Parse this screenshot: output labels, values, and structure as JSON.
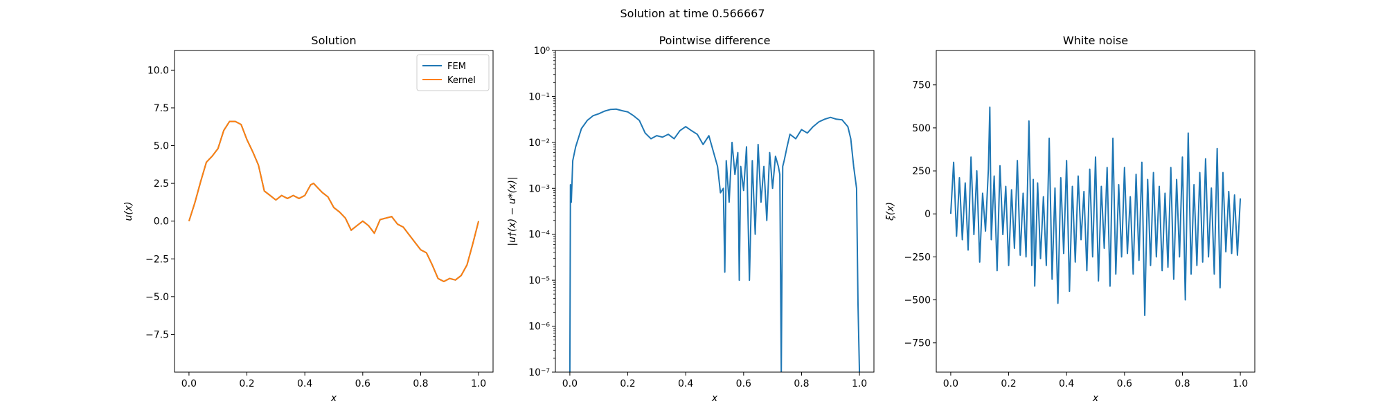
{
  "figure": {
    "suptitle": "Solution at time 0.566667"
  },
  "chart_data": [
    {
      "type": "line",
      "title": "Solution",
      "xlabel": "x",
      "ylabel": "u(x)",
      "xlim": [
        -0.05,
        1.05
      ],
      "ylim": [
        -10,
        11.3
      ],
      "xticks": [
        0.0,
        0.2,
        0.4,
        0.6,
        0.8,
        1.0
      ],
      "xtick_labels": [
        "0.0",
        "0.2",
        "0.4",
        "0.6",
        "0.8",
        "1.0"
      ],
      "yticks": [
        -7.5,
        -5.0,
        -2.5,
        0.0,
        2.5,
        5.0,
        7.5,
        10.0
      ],
      "ytick_labels": [
        "−7.5",
        "−5.0",
        "−2.5",
        "0.0",
        "2.5",
        "5.0",
        "7.5",
        "10.0"
      ],
      "legend": "top-right",
      "grid": false,
      "series": [
        {
          "name": "FEM",
          "color": "#1f77b4",
          "x": [
            0,
            0.02,
            0.04,
            0.06,
            0.08,
            0.1,
            0.12,
            0.14,
            0.16,
            0.18,
            0.2,
            0.22,
            0.24,
            0.26,
            0.28,
            0.3,
            0.32,
            0.34,
            0.36,
            0.38,
            0.4,
            0.42,
            0.43,
            0.44,
            0.46,
            0.48,
            0.5,
            0.52,
            0.54,
            0.56,
            0.58,
            0.6,
            0.62,
            0.64,
            0.66,
            0.68,
            0.7,
            0.72,
            0.74,
            0.76,
            0.78,
            0.8,
            0.82,
            0.84,
            0.86,
            0.88,
            0.9,
            0.92,
            0.94,
            0.96,
            0.98,
            1.0
          ],
          "y": [
            0,
            1.2,
            2.6,
            3.9,
            4.3,
            4.8,
            6.0,
            6.6,
            6.6,
            6.4,
            5.4,
            4.6,
            3.7,
            2.0,
            1.7,
            1.4,
            1.7,
            1.5,
            1.7,
            1.5,
            1.7,
            2.4,
            2.5,
            2.3,
            1.9,
            1.6,
            0.9,
            0.6,
            0.2,
            -0.6,
            -0.3,
            0.0,
            -0.3,
            -0.8,
            0.1,
            0.2,
            0.3,
            -0.2,
            -0.4,
            -0.9,
            -1.4,
            -1.9,
            -2.1,
            -2.9,
            -3.8,
            -4.0,
            -3.8,
            -3.9,
            -3.6,
            -2.9,
            -1.5,
            0.0
          ]
        },
        {
          "name": "Kernel",
          "color": "#ff7f0e",
          "x": [
            0,
            0.02,
            0.04,
            0.06,
            0.08,
            0.1,
            0.12,
            0.14,
            0.16,
            0.18,
            0.2,
            0.22,
            0.24,
            0.26,
            0.28,
            0.3,
            0.32,
            0.34,
            0.36,
            0.38,
            0.4,
            0.42,
            0.43,
            0.44,
            0.46,
            0.48,
            0.5,
            0.52,
            0.54,
            0.56,
            0.58,
            0.6,
            0.62,
            0.64,
            0.66,
            0.68,
            0.7,
            0.72,
            0.74,
            0.76,
            0.78,
            0.8,
            0.82,
            0.84,
            0.86,
            0.88,
            0.9,
            0.92,
            0.94,
            0.96,
            0.98,
            1.0
          ],
          "y": [
            0,
            1.2,
            2.6,
            3.9,
            4.3,
            4.8,
            6.0,
            6.6,
            6.6,
            6.4,
            5.4,
            4.6,
            3.7,
            2.0,
            1.7,
            1.4,
            1.7,
            1.5,
            1.7,
            1.5,
            1.7,
            2.4,
            2.5,
            2.3,
            1.9,
            1.6,
            0.9,
            0.6,
            0.2,
            -0.6,
            -0.3,
            0.0,
            -0.3,
            -0.8,
            0.1,
            0.2,
            0.3,
            -0.2,
            -0.4,
            -0.9,
            -1.4,
            -1.9,
            -2.1,
            -2.9,
            -3.8,
            -4.0,
            -3.8,
            -3.9,
            -3.6,
            -2.9,
            -1.5,
            0.0
          ]
        }
      ]
    },
    {
      "type": "line",
      "title": "Pointwise difference",
      "xlabel": "x",
      "ylabel": "|u†(x) − u*(x)|",
      "yscale": "log",
      "xlim": [
        -0.05,
        1.05
      ],
      "ylim": [
        1e-07,
        1
      ],
      "xticks": [
        0.0,
        0.2,
        0.4,
        0.6,
        0.8,
        1.0
      ],
      "xtick_labels": [
        "0.0",
        "0.2",
        "0.4",
        "0.6",
        "0.8",
        "1.0"
      ],
      "yticks": [
        1e-07,
        1e-06,
        1e-05,
        0.0001,
        0.001,
        0.01,
        0.1,
        1
      ],
      "ytick_labels": [
        "10⁻⁷",
        "10⁻⁶",
        "10⁻⁵",
        "10⁻⁴",
        "10⁻³",
        "10⁻²",
        "10⁻¹",
        "10⁰"
      ],
      "grid": false,
      "series": [
        {
          "color": "#1f77b4",
          "x": [
            0.0,
            0.002,
            0.005,
            0.01,
            0.02,
            0.04,
            0.06,
            0.08,
            0.1,
            0.12,
            0.14,
            0.16,
            0.18,
            0.2,
            0.22,
            0.24,
            0.26,
            0.28,
            0.3,
            0.32,
            0.34,
            0.36,
            0.38,
            0.4,
            0.42,
            0.44,
            0.46,
            0.48,
            0.5,
            0.51,
            0.52,
            0.53,
            0.535,
            0.54,
            0.55,
            0.56,
            0.57,
            0.58,
            0.585,
            0.59,
            0.6,
            0.61,
            0.62,
            0.63,
            0.64,
            0.65,
            0.66,
            0.67,
            0.68,
            0.69,
            0.7,
            0.71,
            0.72,
            0.725,
            0.73,
            0.735,
            0.74,
            0.75,
            0.76,
            0.78,
            0.8,
            0.82,
            0.84,
            0.86,
            0.88,
            0.9,
            0.92,
            0.94,
            0.96,
            0.97,
            0.98,
            0.99,
            0.995,
            1.0
          ],
          "y": [
            1e-07,
            0.0012,
            0.0005,
            0.004,
            0.008,
            0.02,
            0.03,
            0.038,
            0.042,
            0.048,
            0.052,
            0.053,
            0.049,
            0.046,
            0.038,
            0.03,
            0.016,
            0.012,
            0.014,
            0.013,
            0.015,
            0.012,
            0.018,
            0.022,
            0.018,
            0.015,
            0.009,
            0.014,
            0.005,
            0.003,
            0.0008,
            0.001,
            1.5e-05,
            0.004,
            0.0005,
            0.01,
            0.002,
            0.006,
            1e-05,
            0.003,
            0.0009,
            0.008,
            1e-05,
            0.004,
            0.0001,
            0.009,
            0.0005,
            0.003,
            0.0002,
            0.006,
            0.001,
            0.005,
            0.003,
            0.002,
            1e-07,
            0.003,
            0.004,
            0.008,
            0.015,
            0.012,
            0.019,
            0.016,
            0.022,
            0.028,
            0.032,
            0.035,
            0.032,
            0.031,
            0.022,
            0.012,
            0.003,
            0.001,
            3e-06,
            1e-07
          ]
        }
      ]
    },
    {
      "type": "line",
      "title": "White noise",
      "xlabel": "x",
      "ylabel": "ξ(x)",
      "xlim": [
        -0.05,
        1.05
      ],
      "ylim": [
        -920,
        950
      ],
      "xticks": [
        0.0,
        0.2,
        0.4,
        0.6,
        0.8,
        1.0
      ],
      "xtick_labels": [
        "0.0",
        "0.2",
        "0.4",
        "0.6",
        "0.8",
        "1.0"
      ],
      "yticks": [
        -750,
        -500,
        -250,
        0,
        250,
        500,
        750
      ],
      "ytick_labels": [
        "−750",
        "−500",
        "−250",
        "0",
        "250",
        "500",
        "750"
      ],
      "grid": false,
      "series": [
        {
          "color": "#1f77b4",
          "x": [
            0.0,
            0.01,
            0.02,
            0.03,
            0.04,
            0.05,
            0.06,
            0.07,
            0.08,
            0.09,
            0.1,
            0.11,
            0.12,
            0.13,
            0.135,
            0.14,
            0.15,
            0.16,
            0.17,
            0.18,
            0.19,
            0.2,
            0.21,
            0.22,
            0.23,
            0.24,
            0.25,
            0.26,
            0.27,
            0.28,
            0.285,
            0.29,
            0.3,
            0.31,
            0.32,
            0.33,
            0.34,
            0.35,
            0.36,
            0.37,
            0.38,
            0.39,
            0.4,
            0.41,
            0.42,
            0.43,
            0.44,
            0.45,
            0.46,
            0.47,
            0.48,
            0.49,
            0.5,
            0.51,
            0.52,
            0.53,
            0.54,
            0.55,
            0.56,
            0.57,
            0.58,
            0.59,
            0.6,
            0.61,
            0.62,
            0.63,
            0.64,
            0.65,
            0.66,
            0.67,
            0.68,
            0.69,
            0.7,
            0.71,
            0.72,
            0.73,
            0.74,
            0.75,
            0.76,
            0.77,
            0.78,
            0.79,
            0.8,
            0.81,
            0.82,
            0.83,
            0.84,
            0.85,
            0.86,
            0.87,
            0.88,
            0.89,
            0.9,
            0.91,
            0.92,
            0.93,
            0.94,
            0.95,
            0.96,
            0.97,
            0.98,
            0.99,
            1.0
          ],
          "y": [
            0,
            300,
            -130,
            210,
            -150,
            180,
            -210,
            330,
            -120,
            250,
            -280,
            120,
            -100,
            260,
            620,
            -150,
            220,
            -330,
            280,
            -120,
            160,
            -300,
            140,
            -200,
            310,
            -240,
            120,
            -250,
            540,
            -300,
            200,
            -420,
            180,
            -260,
            100,
            -300,
            440,
            -380,
            150,
            -520,
            210,
            -230,
            310,
            -450,
            160,
            -280,
            220,
            -150,
            130,
            -330,
            260,
            -250,
            330,
            -390,
            160,
            -200,
            270,
            -420,
            440,
            -350,
            170,
            -250,
            270,
            -230,
            100,
            -350,
            230,
            -270,
            300,
            -590,
            200,
            -300,
            240,
            -250,
            160,
            -330,
            120,
            -310,
            270,
            -380,
            200,
            -250,
            330,
            -500,
            470,
            -350,
            170,
            -300,
            240,
            -280,
            320,
            -250,
            150,
            -350,
            380,
            -430,
            240,
            -220,
            130,
            -230,
            110,
            -240,
            90
          ]
        }
      ]
    }
  ]
}
